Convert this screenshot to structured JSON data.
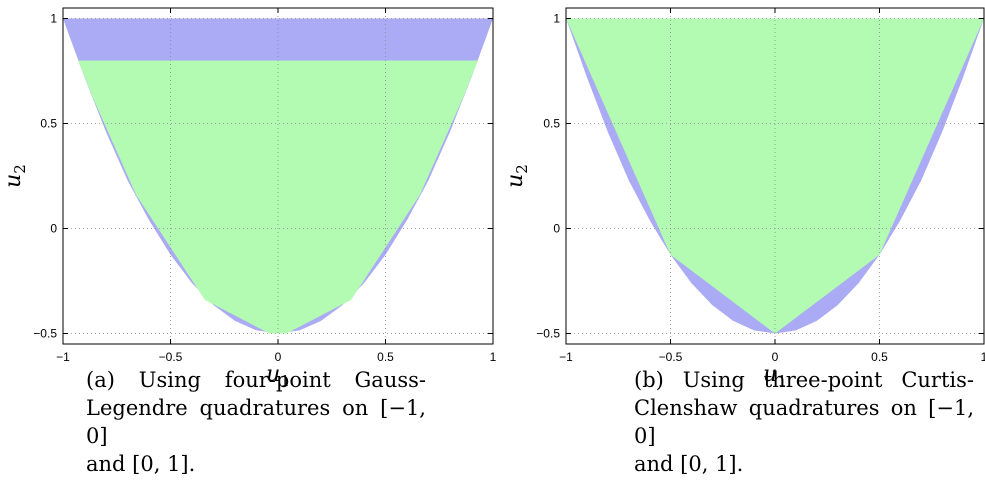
{
  "chart_data": [
    {
      "type": "area",
      "xlabel": "u1",
      "ylabel": "u2",
      "xlim": [
        -1,
        1
      ],
      "ylim": [
        -0.55,
        1.05
      ],
      "xticks": [
        -1,
        -0.5,
        0,
        0.5,
        1
      ],
      "xtick_labels": [
        "−1",
        "−0.5",
        "0",
        "0.5",
        "1"
      ],
      "yticks": [
        -0.5,
        0,
        0.5,
        1
      ],
      "ytick_labels": [
        "−0.5",
        "0",
        "0.5",
        "1"
      ],
      "grid": true,
      "series": [
        {
          "color": "#aaaaf5",
          "points": [
            [
              -1,
              1
            ],
            [
              -0.9,
              0.72
            ],
            [
              -0.8,
              0.46
            ],
            [
              -0.7,
              0.23
            ],
            [
              -0.6,
              0.04
            ],
            [
              -0.5,
              -0.125
            ],
            [
              -0.4,
              -0.26
            ],
            [
              -0.3,
              -0.365
            ],
            [
              -0.2,
              -0.44
            ],
            [
              -0.1,
              -0.485
            ],
            [
              0,
              -0.5
            ],
            [
              0.1,
              -0.485
            ],
            [
              0.2,
              -0.44
            ],
            [
              0.3,
              -0.365
            ],
            [
              0.4,
              -0.26
            ],
            [
              0.5,
              -0.125
            ],
            [
              0.6,
              0.04
            ],
            [
              0.7,
              0.23
            ],
            [
              0.8,
              0.46
            ],
            [
              0.9,
              0.72
            ],
            [
              1,
              1
            ]
          ]
        },
        {
          "color": "#b3fab3",
          "points": [
            [
              -0.93,
              0.8
            ],
            [
              -0.86,
              0.62
            ],
            [
              -0.66,
              0.16
            ],
            [
              -0.34,
              -0.34
            ],
            [
              -0.04,
              -0.5
            ],
            [
              0.04,
              -0.5
            ],
            [
              0.34,
              -0.34
            ],
            [
              0.66,
              0.16
            ],
            [
              0.86,
              0.62
            ],
            [
              0.93,
              0.8
            ]
          ]
        }
      ]
    },
    {
      "type": "area",
      "xlabel": "u1",
      "ylabel": "u2",
      "xlim": [
        -1,
        1
      ],
      "ylim": [
        -0.55,
        1.05
      ],
      "xticks": [
        -1,
        -0.5,
        0,
        0.5,
        1
      ],
      "xtick_labels": [
        "−1",
        "−0.5",
        "0",
        "0.5",
        "1"
      ],
      "yticks": [
        -0.5,
        0,
        0.5,
        1
      ],
      "ytick_labels": [
        "−0.5",
        "0",
        "0.5",
        "1"
      ],
      "grid": true,
      "series": [
        {
          "color": "#aaaaf5",
          "points": [
            [
              -1,
              1
            ],
            [
              -0.9,
              0.72
            ],
            [
              -0.8,
              0.46
            ],
            [
              -0.7,
              0.23
            ],
            [
              -0.6,
              0.04
            ],
            [
              -0.5,
              -0.125
            ],
            [
              -0.4,
              -0.26
            ],
            [
              -0.3,
              -0.365
            ],
            [
              -0.2,
              -0.44
            ],
            [
              -0.1,
              -0.485
            ],
            [
              0,
              -0.5
            ],
            [
              0.1,
              -0.485
            ],
            [
              0.2,
              -0.44
            ],
            [
              0.3,
              -0.365
            ],
            [
              0.4,
              -0.26
            ],
            [
              0.5,
              -0.125
            ],
            [
              0.6,
              0.04
            ],
            [
              0.7,
              0.23
            ],
            [
              0.8,
              0.46
            ],
            [
              0.9,
              0.72
            ],
            [
              1,
              1
            ]
          ]
        },
        {
          "color": "#b3fab3",
          "points": [
            [
              -1,
              1
            ],
            [
              -0.5,
              -0.125
            ],
            [
              0,
              -0.5
            ],
            [
              0.5,
              -0.125
            ],
            [
              1,
              1
            ]
          ]
        }
      ]
    }
  ],
  "captions": [
    {
      "lines": [
        "(a) Using four-point Gauss-",
        "Legendre quadratures on [−1, 0]",
        "and [0, 1]."
      ]
    },
    {
      "lines": [
        "(b) Using three-point Curtis-",
        "Clenshaw quadratures on [−1, 0]",
        "and [0, 1]."
      ]
    }
  ]
}
